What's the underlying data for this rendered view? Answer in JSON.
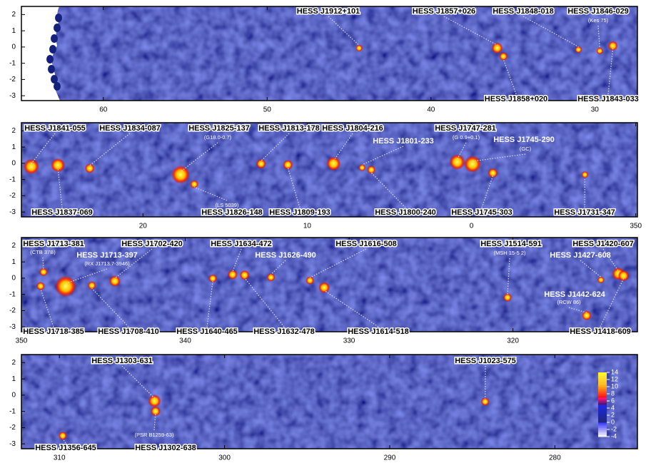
{
  "chart_data": [
    {
      "type": "skymap",
      "xlim": [
        65,
        27.4
      ],
      "ylim": [
        -3.3,
        2.5
      ],
      "xticks": [
        60,
        50,
        40,
        30
      ],
      "yticks": [
        2,
        1,
        0,
        -1,
        -2,
        -3
      ],
      "sources": [
        {
          "name": "HESS J1912+101",
          "l": 44.39,
          "b": -0.07,
          "label_side": "top"
        },
        {
          "name": "HESS J1857+026",
          "l": 35.96,
          "b": -0.06,
          "label_side": "top"
        },
        {
          "name": "HESS J1848-018",
          "l": 31.0,
          "b": -0.16,
          "label_side": "top"
        },
        {
          "name": "HESS J1846-029",
          "alias": "(Kes 75)",
          "l": 29.7,
          "b": -0.24,
          "label_side": "top"
        },
        {
          "name": "HESS J1858+020",
          "l": 35.58,
          "b": -0.58,
          "label_side": "bottom"
        },
        {
          "name": "HESS J1843-033",
          "l": 28.9,
          "b": 0.07,
          "label_side": "bottom"
        }
      ]
    },
    {
      "type": "skymap",
      "xlim": [
        27.4,
        -10.1
      ],
      "ylim": [
        -3.3,
        2.5
      ],
      "xticks": [
        20,
        10,
        0,
        {
          "value": -10,
          "label": "350"
        }
      ],
      "yticks": [
        2,
        1,
        0,
        -1,
        -2,
        -3
      ],
      "sources": [
        {
          "name": "HESS J1841-055",
          "l": 26.8,
          "b": -0.2,
          "label_side": "top"
        },
        {
          "name": "HESS J1834-087",
          "l": 23.24,
          "b": -0.31,
          "label_side": "top"
        },
        {
          "name": "HESS J1825-137",
          "alias": "(G18.0-0.7)",
          "l": 17.71,
          "b": -0.7,
          "label_side": "top"
        },
        {
          "name": "HESS J1813-178",
          "l": 12.81,
          "b": -0.03,
          "label_side": "top"
        },
        {
          "name": "HESS J1804-216",
          "l": 8.4,
          "b": -0.02,
          "label_side": "top"
        },
        {
          "name": "HESS J1801-233",
          "l": 6.66,
          "b": -0.27,
          "label_side": "top"
        },
        {
          "name": "HESS J1747-281",
          "alias": "(G 0.9+0.1)",
          "l": 0.87,
          "b": 0.08,
          "label_side": "top"
        },
        {
          "name": "HESS J1745-290",
          "alias": "(GC)",
          "l": -0.06,
          "b": -0.05,
          "label_side": "top"
        },
        {
          "name": "HESS J1837-069",
          "l": 25.18,
          "b": -0.12,
          "label_side": "bottom"
        },
        {
          "name": "HESS J1826-148",
          "alias": "(LS 5039)",
          "l": 16.88,
          "b": -1.29,
          "label_side": "bottom"
        },
        {
          "name": "HESS J1809-193",
          "l": 11.18,
          "b": -0.09,
          "label_side": "bottom"
        },
        {
          "name": "HESS J1800-240",
          "l": 6.1,
          "b": -0.4,
          "label_side": "bottom"
        },
        {
          "name": "HESS J1745-303",
          "l": -1.3,
          "b": -0.6,
          "label_side": "bottom"
        },
        {
          "name": "HESS J1731-347",
          "l": -6.9,
          "b": -0.7,
          "label_side": "bottom"
        }
      ]
    },
    {
      "type": "skymap",
      "xlim": [
        350,
        312.4
      ],
      "ylim": [
        -3.3,
        2.5
      ],
      "xticks": [
        350,
        340,
        330,
        320
      ],
      "yticks": [
        2,
        1,
        0,
        -1,
        -2,
        -3
      ],
      "sources": [
        {
          "name": "HESS J1713-381",
          "alias": "(CTB 37B)",
          "l": 348.65,
          "b": 0.38,
          "label_side": "top"
        },
        {
          "name": "HESS J1713-397",
          "alias": "(RX J1713.7-3946)",
          "l": 347.3,
          "b": -0.5,
          "label_side": "top"
        },
        {
          "name": "HESS J1702-420",
          "l": 344.3,
          "b": -0.18,
          "label_side": "top"
        },
        {
          "name": "HESS J1634-472",
          "l": 337.11,
          "b": 0.22,
          "label_side": "top"
        },
        {
          "name": "HESS J1626-490",
          "l": 334.77,
          "b": 0.05,
          "label_side": "top"
        },
        {
          "name": "HESS J1616-508",
          "l": 332.39,
          "b": -0.14,
          "label_side": "top"
        },
        {
          "name": "HESS J1514-591",
          "alias": "(MSH 15-5 2)",
          "l": 320.33,
          "b": -1.19,
          "label_side": "top"
        },
        {
          "name": "HESS J1420-607",
          "l": 313.56,
          "b": 0.27,
          "label_side": "top"
        },
        {
          "name": "HESS J1427-608",
          "l": 314.63,
          "b": -0.11,
          "label_side": "top"
        },
        {
          "name": "HESS J1442-624",
          "alias": "(RCW 86)",
          "l": 315.5,
          "b": -2.3,
          "label_side": "top"
        },
        {
          "name": "HESS J1718-385",
          "l": 348.83,
          "b": -0.49,
          "label_side": "bottom"
        },
        {
          "name": "HESS J1708-410",
          "l": 345.7,
          "b": -0.45,
          "label_side": "bottom"
        },
        {
          "name": "HESS J1640-465",
          "l": 338.32,
          "b": -0.02,
          "label_side": "bottom"
        },
        {
          "name": "HESS J1632-478",
          "l": 336.38,
          "b": 0.19,
          "label_side": "bottom"
        },
        {
          "name": "HESS J1614-518",
          "l": 331.52,
          "b": -0.58,
          "label_side": "bottom"
        },
        {
          "name": "HESS J1418-609",
          "l": 313.25,
          "b": 0.15,
          "label_side": "bottom"
        }
      ]
    },
    {
      "type": "skymap",
      "xlim": [
        312.3,
        275
      ],
      "ylim": [
        -3.3,
        2.5
      ],
      "xticks": [
        310,
        300,
        290,
        280
      ],
      "yticks": [
        2,
        1,
        0,
        -1,
        -2,
        -3
      ],
      "sources": [
        {
          "name": "HESS J1303-631",
          "l": 304.24,
          "b": -0.36,
          "label_side": "top"
        },
        {
          "name": "HESS J1023-575",
          "l": 284.22,
          "b": -0.4,
          "label_side": "top"
        },
        {
          "name": "HESS J1356-645",
          "l": 309.8,
          "b": -2.5,
          "label_side": "bottom"
        },
        {
          "name": "HESS J1302-638",
          "alias": "(PSR B1259-63)",
          "l": 304.18,
          "b": -0.99,
          "label_side": "bottom"
        }
      ],
      "colorbar": {
        "lim": [
          -4,
          14
        ],
        "ticks": [
          14,
          12,
          10,
          8,
          6,
          4,
          2,
          0,
          -2,
          -4
        ]
      }
    }
  ]
}
